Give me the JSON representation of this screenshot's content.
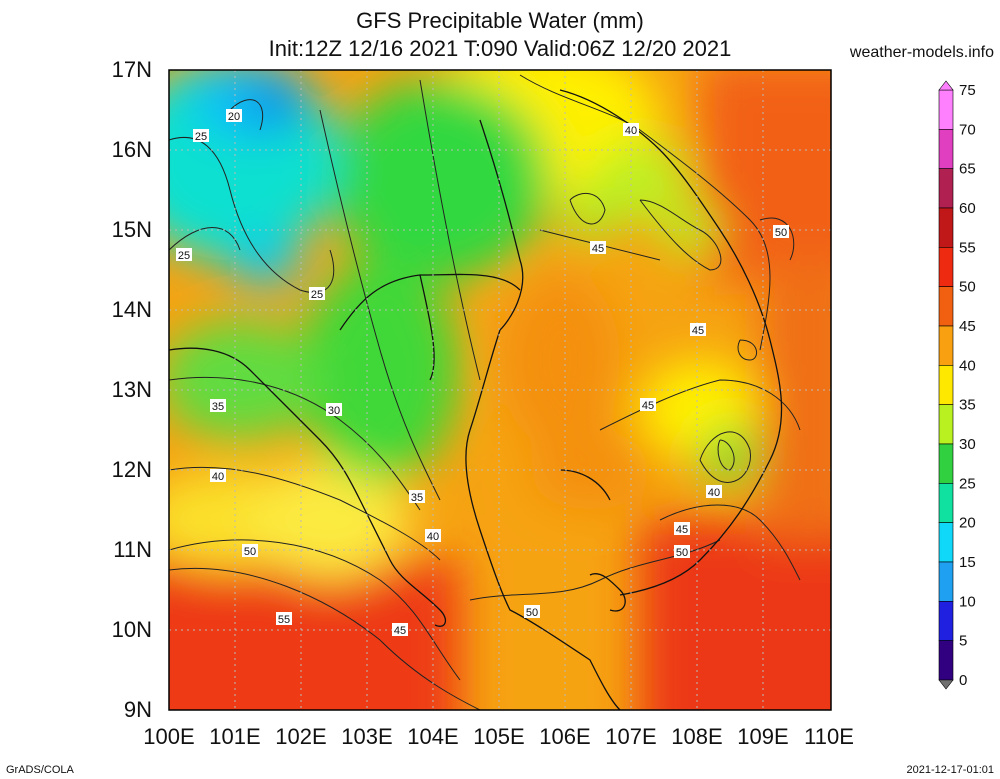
{
  "title_line1": "GFS Precipitable Water (mm)",
  "title_line2": "Init:12Z 12/16 2021 T:090 Valid:06Z 12/20 2021",
  "site": "weather-models.info",
  "footer_left": "GrADS/COLA",
  "footer_right": "2021-12-17-01:01",
  "lat_labels": [
    "17N",
    "16N",
    "15N",
    "14N",
    "13N",
    "12N",
    "11N",
    "10N",
    "9N"
  ],
  "lon_labels": [
    "100E",
    "101E",
    "102E",
    "103E",
    "104E",
    "105E",
    "106E",
    "107E",
    "108E",
    "109E",
    "110E"
  ],
  "colorbar": {
    "labels": [
      "75",
      "70",
      "65",
      "60",
      "55",
      "50",
      "45",
      "40",
      "35",
      "30",
      "25",
      "20",
      "15",
      "10",
      "5",
      "0"
    ],
    "colors": [
      "#ff80ff",
      "#e040c0",
      "#b02050",
      "#c01818",
      "#ee2a10",
      "#f06010",
      "#f8a010",
      "#ffe800",
      "#b8f020",
      "#30d040",
      "#10e0a0",
      "#10d8f8",
      "#20a0f0",
      "#2020e0",
      "#300080",
      "#707070"
    ]
  },
  "contour_labels": [
    "20",
    "25",
    "25",
    "25",
    "30",
    "35",
    "35",
    "40",
    "40",
    "40",
    "40",
    "45",
    "45",
    "45",
    "45",
    "45",
    "50",
    "50",
    "50",
    "50",
    "55"
  ]
}
